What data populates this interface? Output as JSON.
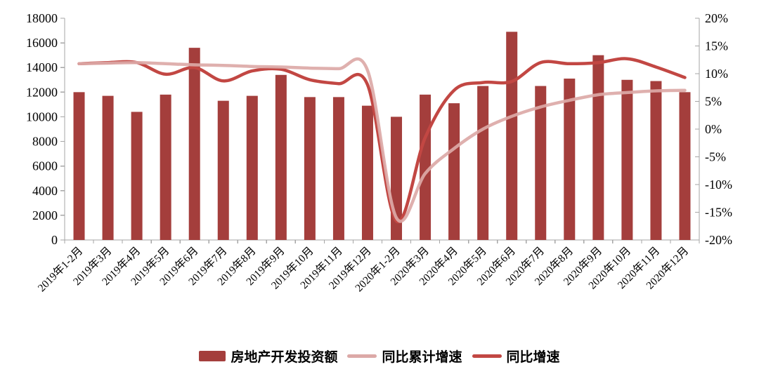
{
  "chart_data": {
    "type": "bar",
    "combo": "bar+line, dual axis",
    "title": "",
    "categories": [
      "2019年1-2月",
      "2019年3月",
      "2019年4月",
      "2019年5月",
      "2019年6月",
      "2019年7月",
      "2019年8月",
      "2019年9月",
      "2019年10月",
      "2019年11月",
      "2019年12月",
      "2020年1-2月",
      "2020年3月",
      "2020年4月",
      "2020年5月",
      "2020年6月",
      "2020年7月",
      "2020年8月",
      "2020年9月",
      "2020年10月",
      "2020年11月",
      "2020年12月"
    ],
    "series": [
      {
        "name": "房地产开发投资额",
        "type": "bar",
        "axis": "left",
        "color": "#A43E3C",
        "values": [
          12000,
          11700,
          10400,
          11800,
          15600,
          11300,
          11700,
          13400,
          11600,
          11600,
          10900,
          10000,
          11800,
          11100,
          12500,
          16900,
          12500,
          13100,
          15000,
          13000,
          12900,
          12000
        ]
      },
      {
        "name": "同比累计增速",
        "type": "line",
        "axis": "right",
        "color": "#DCA9A7",
        "values": [
          11.8,
          11.9,
          12.0,
          11.8,
          11.6,
          11.5,
          11.3,
          11.2,
          11.0,
          10.9,
          10.6,
          -16.0,
          -8.0,
          -3.5,
          0.0,
          2.3,
          4.0,
          5.2,
          6.2,
          6.6,
          6.9,
          7.0
        ]
      },
      {
        "name": "同比增速",
        "type": "line",
        "axis": "right",
        "color": "#C24743",
        "values": [
          11.8,
          12.0,
          12.0,
          9.9,
          11.1,
          8.7,
          10.5,
          10.8,
          8.9,
          8.2,
          8.0,
          -16.6,
          -1.5,
          7.0,
          8.4,
          8.6,
          12.0,
          11.8,
          12.0,
          12.7,
          11.2,
          9.3
        ]
      }
    ],
    "left_axis": {
      "min": 0,
      "max": 18000,
      "step": 2000,
      "tick_labels": [
        "18000",
        "16000",
        "14000",
        "12000",
        "10000",
        "8000",
        "6000",
        "4000",
        "2000",
        "0"
      ]
    },
    "right_axis": {
      "min": -20,
      "max": 20,
      "step": 5,
      "tick_labels": [
        "20%",
        "15%",
        "10%",
        "5%",
        "0%",
        "-5%",
        "-10%",
        "-15%",
        "-20%"
      ]
    },
    "grid": "off",
    "legend_position": "bottom",
    "axis_color": "#A6A6A6",
    "x_label_rotation": -45
  },
  "legend": {
    "items": [
      {
        "label": "房地产开发投资额",
        "swatch": "bar",
        "color": "#A43E3C"
      },
      {
        "label": "同比累计增速",
        "swatch": "line",
        "color": "#DCA9A7"
      },
      {
        "label": "同比增速",
        "swatch": "line",
        "color": "#C24743"
      }
    ]
  }
}
